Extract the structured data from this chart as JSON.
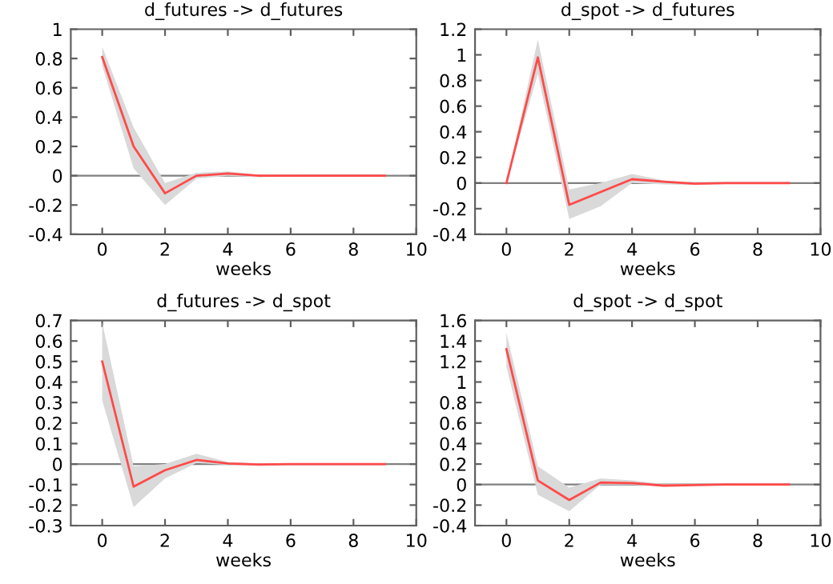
{
  "chart_data": [
    {
      "type": "line",
      "title": "d_futures -> d_futures",
      "xlabel": "weeks",
      "x": [
        0,
        1,
        2,
        3,
        4,
        5,
        6,
        7,
        8,
        9
      ],
      "xlim": [
        -1,
        10
      ],
      "xticks": [
        0,
        2,
        4,
        6,
        8,
        10
      ],
      "ylim": [
        -0.4,
        1
      ],
      "yticks": [
        -0.4,
        -0.2,
        0,
        0.2,
        0.4,
        0.6,
        0.8,
        1
      ],
      "ref_lines": [
        {
          "axis": "y",
          "value": 0,
          "color": "#808080"
        }
      ],
      "series": [
        {
          "color": "#ff4a4a",
          "values": [
            0.81,
            0.2,
            -0.12,
            0.0,
            0.015,
            0.0,
            0.0,
            0.0,
            0.0,
            0.0
          ],
          "lower": [
            0.75,
            0.05,
            -0.2,
            -0.02,
            0.0,
            -0.01,
            -0.005,
            0.0,
            0.0,
            0.0
          ],
          "upper": [
            0.88,
            0.33,
            -0.05,
            0.02,
            0.03,
            0.005,
            0.005,
            0.0,
            0.0,
            0.0
          ]
        }
      ]
    },
    {
      "type": "line",
      "title": "d_spot -> d_futures",
      "xlabel": "weeks",
      "x": [
        0,
        1,
        2,
        3,
        4,
        5,
        6,
        7,
        8,
        9
      ],
      "xlim": [
        -1,
        10
      ],
      "xticks": [
        0,
        2,
        4,
        6,
        8,
        10
      ],
      "ylim": [
        -0.4,
        1.2
      ],
      "yticks": [
        -0.4,
        -0.2,
        0,
        0.2,
        0.4,
        0.6,
        0.8,
        1,
        1.2
      ],
      "ref_lines": [
        {
          "axis": "y",
          "value": 0,
          "color": "#808080"
        }
      ],
      "series": [
        {
          "color": "#ff4a4a",
          "values": [
            0.0,
            0.98,
            -0.17,
            -0.07,
            0.03,
            0.01,
            -0.005,
            0.0,
            0.0,
            0.0
          ],
          "lower": [
            0.0,
            0.85,
            -0.28,
            -0.18,
            0.0,
            -0.01,
            -0.015,
            -0.005,
            0.0,
            0.0
          ],
          "upper": [
            0.0,
            1.12,
            -0.05,
            0.0,
            0.07,
            0.02,
            0.005,
            0.005,
            0.0,
            0.0
          ]
        }
      ]
    },
    {
      "type": "line",
      "title": "d_futures -> d_spot",
      "xlabel": "weeks",
      "x": [
        0,
        1,
        2,
        3,
        4,
        5,
        6,
        7,
        8,
        9
      ],
      "xlim": [
        -1,
        10
      ],
      "xticks": [
        0,
        2,
        4,
        6,
        8,
        10
      ],
      "ylim": [
        -0.3,
        0.7
      ],
      "yticks": [
        -0.3,
        -0.2,
        -0.1,
        0,
        0.1,
        0.2,
        0.3,
        0.4,
        0.5,
        0.6,
        0.7
      ],
      "ref_lines": [
        {
          "axis": "y",
          "value": 0,
          "color": "#808080"
        }
      ],
      "series": [
        {
          "color": "#ff4a4a",
          "values": [
            0.5,
            -0.11,
            -0.03,
            0.02,
            0.003,
            -0.002,
            0.0,
            0.0,
            0.0,
            0.0
          ],
          "lower": [
            0.31,
            -0.21,
            -0.07,
            0.005,
            -0.005,
            -0.005,
            -0.003,
            0.0,
            0.0,
            0.0
          ],
          "upper": [
            0.69,
            -0.01,
            0.0,
            0.05,
            0.01,
            0.003,
            0.003,
            0.0,
            0.0,
            0.0
          ]
        }
      ]
    },
    {
      "type": "line",
      "title": "d_spot -> d_spot",
      "xlabel": "weeks",
      "x": [
        0,
        1,
        2,
        3,
        4,
        5,
        6,
        7,
        8,
        9
      ],
      "xlim": [
        -1,
        10
      ],
      "xticks": [
        0,
        2,
        4,
        6,
        8,
        10
      ],
      "ylim": [
        -0.4,
        1.6
      ],
      "yticks": [
        -0.4,
        -0.2,
        0,
        0.2,
        0.4,
        0.6,
        0.8,
        1,
        1.2,
        1.4,
        1.6
      ],
      "ref_lines": [
        {
          "axis": "y",
          "value": 0,
          "color": "#808080"
        }
      ],
      "series": [
        {
          "color": "#ff4a4a",
          "values": [
            1.32,
            0.04,
            -0.15,
            0.02,
            0.015,
            -0.01,
            -0.005,
            0.0,
            0.0,
            0.0
          ],
          "lower": [
            1.15,
            -0.1,
            -0.26,
            0.0,
            0.0,
            -0.02,
            -0.01,
            0.0,
            0.0,
            0.0
          ],
          "upper": [
            1.48,
            0.18,
            -0.03,
            0.06,
            0.04,
            0.005,
            0.005,
            0.0,
            0.0,
            0.0
          ]
        }
      ]
    }
  ]
}
